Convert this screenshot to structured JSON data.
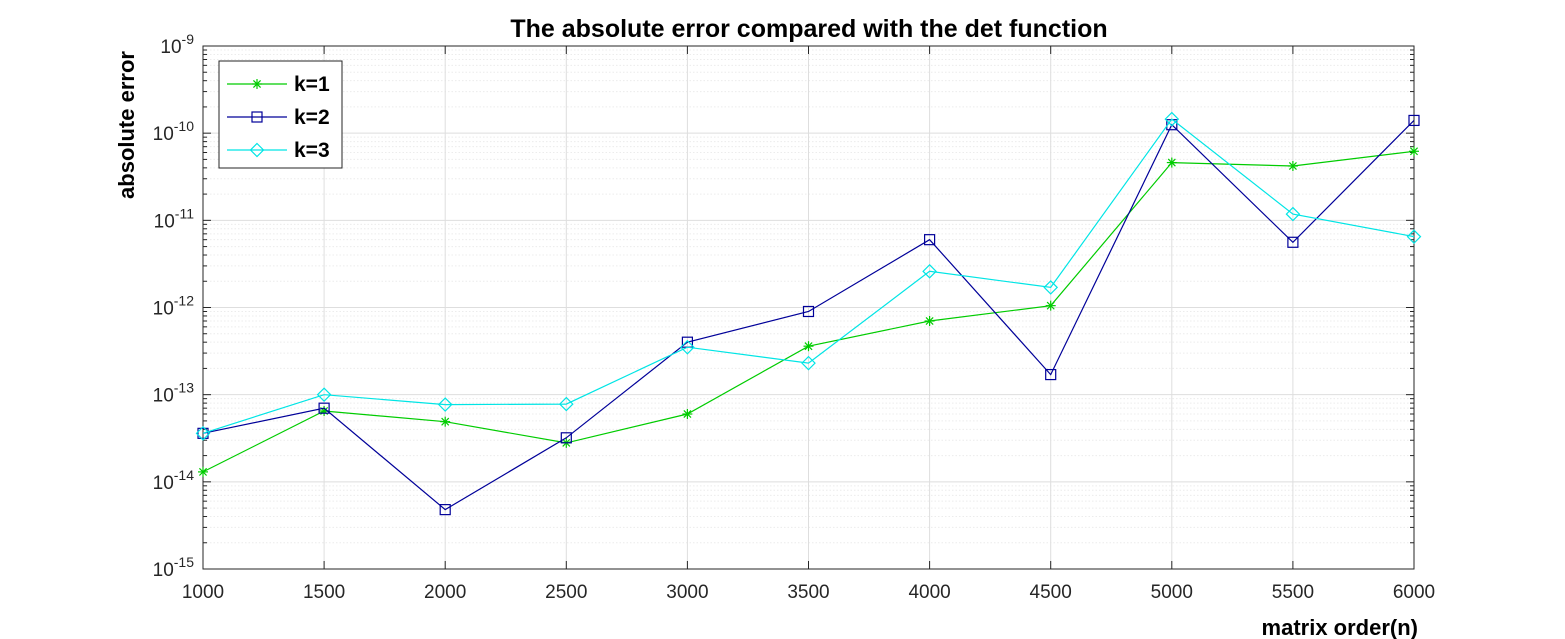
{
  "chart_data": {
    "type": "line",
    "title": "The absolute error compared with the det function",
    "xlabel": "matrix order(n)",
    "ylabel": "absolute error",
    "xlim": [
      1000,
      6000
    ],
    "ylim": [
      1e-15,
      1e-09
    ],
    "yscale": "log",
    "grid": true,
    "minor_grid": true,
    "legend_position": "top-left",
    "x": [
      1000,
      1500,
      2000,
      2500,
      3000,
      3500,
      4000,
      4500,
      5000,
      5500,
      6000
    ],
    "x_tick_labels": [
      "1000",
      "1500",
      "2000",
      "2500",
      "3000",
      "3500",
      "4000",
      "4500",
      "5000",
      "5500",
      "6000"
    ],
    "y_ticks": [
      {
        "value": 1e-15,
        "base": "10",
        "exp": "-15"
      },
      {
        "value": 1e-14,
        "base": "10",
        "exp": "-14"
      },
      {
        "value": 1e-13,
        "base": "10",
        "exp": "-13"
      },
      {
        "value": 1e-12,
        "base": "10",
        "exp": "-12"
      },
      {
        "value": 1e-11,
        "base": "10",
        "exp": "-11"
      },
      {
        "value": 1e-10,
        "base": "10",
        "exp": "-10"
      },
      {
        "value": 1e-09,
        "base": "10",
        "exp": "-9"
      }
    ],
    "series": [
      {
        "name": "k=1",
        "color": "#00cc00",
        "marker": "asterisk",
        "values": [
          1.3e-14,
          6.5e-14,
          4.9e-14,
          2.8e-14,
          6e-14,
          3.6e-13,
          7e-13,
          1.05e-12,
          4.6e-11,
          4.2e-11,
          6.2e-11
        ]
      },
      {
        "name": "k=2",
        "color": "#000099",
        "marker": "square",
        "values": [
          3.6e-14,
          7e-14,
          4.8e-15,
          3.2e-14,
          4e-13,
          9e-13,
          6e-12,
          1.7e-13,
          1.25e-10,
          5.6e-12,
          1.4e-10
        ]
      },
      {
        "name": "k=3",
        "color": "#00e5e5",
        "marker": "diamond",
        "values": [
          3.6e-14,
          1e-13,
          7.7e-14,
          7.8e-14,
          3.5e-13,
          2.3e-13,
          2.6e-12,
          1.7e-12,
          1.45e-10,
          1.18e-11,
          6.5e-12
        ]
      }
    ]
  }
}
